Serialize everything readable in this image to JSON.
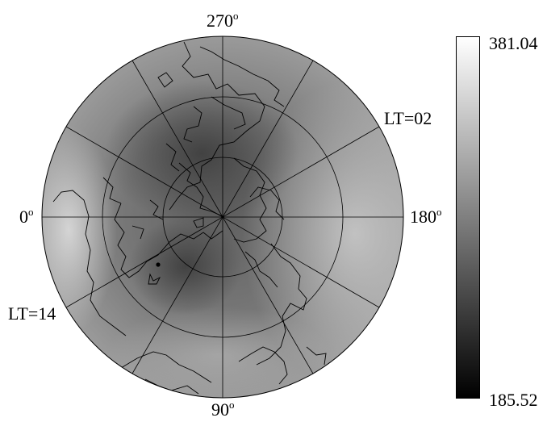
{
  "map": {
    "projection": "polar",
    "longitude_labels": {
      "top": "270",
      "left": "0",
      "right": "180",
      "bottom": "90",
      "degree_symbol": "o"
    },
    "local_time_labels": {
      "upper_right": "LT=02",
      "lower_left": "LT=14"
    },
    "point_marker": "station"
  },
  "colorbar": {
    "max_label": "381.04",
    "min_label": "185.52",
    "max_value": 381.04,
    "min_value": 185.52,
    "colormap": "grayscale",
    "high_color": "#ffffff",
    "low_color": "#000000"
  }
}
